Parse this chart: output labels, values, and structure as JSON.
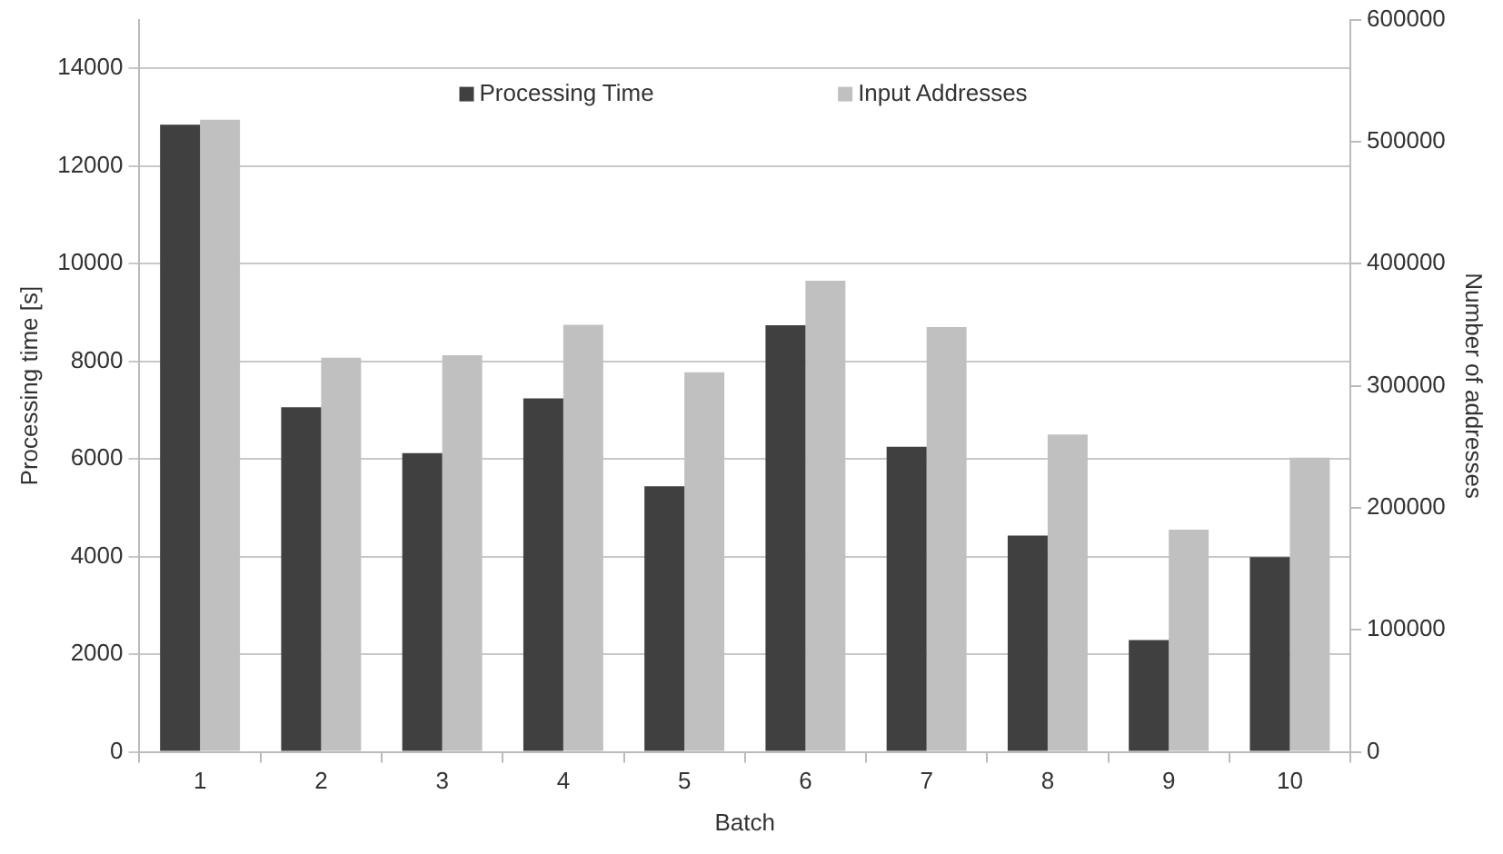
{
  "chart_data": {
    "type": "bar",
    "xlabel": "Batch",
    "ylabel": "Processing time [s]",
    "y2label": "Number of addresses",
    "categories": [
      "1",
      "2",
      "3",
      "4",
      "5",
      "6",
      "7",
      "8",
      "9",
      "10"
    ],
    "series": [
      {
        "name": "Processing Time",
        "color": "#404040",
        "values": [
          12850,
          7060,
          6120,
          7240,
          5440,
          8740,
          6250,
          4430,
          2290,
          3990
        ]
      },
      {
        "name": "Input Addresses",
        "color": "#c0c0c0",
        "axis": "y2",
        "values": [
          518000,
          323000,
          325000,
          350000,
          311000,
          386000,
          348000,
          260000,
          182000,
          241000
        ]
      }
    ],
    "ylim": [
      0,
      15000
    ],
    "yticks": [
      0,
      2000,
      4000,
      6000,
      8000,
      10000,
      12000,
      14000
    ],
    "y2lim": [
      0,
      600000
    ],
    "y2ticks": [
      0,
      100000,
      200000,
      300000,
      400000,
      500000,
      600000
    ],
    "grid": "y",
    "legend": "top"
  }
}
